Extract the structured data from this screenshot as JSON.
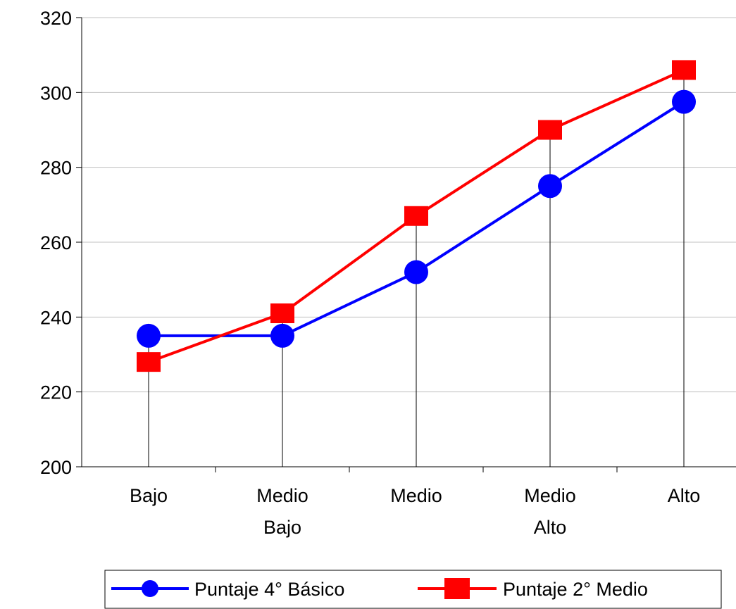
{
  "chart_data": {
    "type": "line",
    "categories": [
      [
        "Bajo"
      ],
      [
        "Medio",
        "Bajo"
      ],
      [
        "Medio"
      ],
      [
        "Medio",
        "Alto"
      ],
      [
        "Alto"
      ]
    ],
    "series": [
      {
        "name": "Puntaje 4° Básico",
        "values": [
          235,
          235,
          252,
          275,
          297.5
        ],
        "color": "#0000FF",
        "marker": "circle"
      },
      {
        "name": "Puntaje 2° Medio",
        "values": [
          228,
          241,
          267,
          290,
          306
        ],
        "color": "#FF0000",
        "marker": "square"
      }
    ],
    "ylim": [
      200,
      320
    ],
    "yticks": [
      200,
      220,
      240,
      260,
      280,
      300,
      320
    ],
    "grid": true,
    "drop_lines": true,
    "legend_position": "bottom",
    "title": "",
    "xlabel": "",
    "ylabel": ""
  }
}
